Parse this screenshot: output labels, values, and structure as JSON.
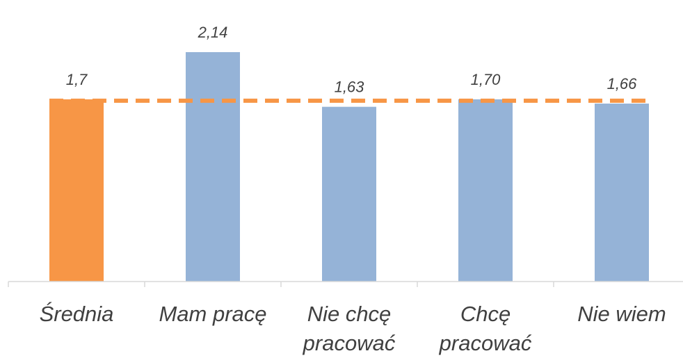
{
  "chart_data": {
    "type": "bar",
    "categories": [
      "Średnia",
      "Mam pracę",
      "Nie chcę pracować",
      "Chcę pracować",
      "Nie wiem"
    ],
    "category_lines": [
      [
        "Średnia"
      ],
      [
        "Mam pracę"
      ],
      [
        "Nie chcę",
        "pracować"
      ],
      [
        "Chcę",
        "pracować"
      ],
      [
        "Nie wiem"
      ]
    ],
    "values": [
      1.7,
      2.14,
      1.63,
      1.7,
      1.66
    ],
    "data_labels": [
      "1,7",
      "2,14",
      "1,63",
      "1,70",
      "1,66"
    ],
    "bar_colors": [
      "#F79646",
      "#95B3D7",
      "#95B3D7",
      "#95B3D7",
      "#95B3D7"
    ],
    "reference_line": {
      "value": 1.7,
      "style": "dashed",
      "color": "#F79646"
    },
    "title": "",
    "xlabel": "",
    "ylabel": "",
    "ylim": [
      0,
      2.14
    ],
    "y_axis_visible": false,
    "grid": false,
    "legend": "none"
  },
  "colors": {
    "axis": "#D9D9D9",
    "label_text": "#404040"
  }
}
